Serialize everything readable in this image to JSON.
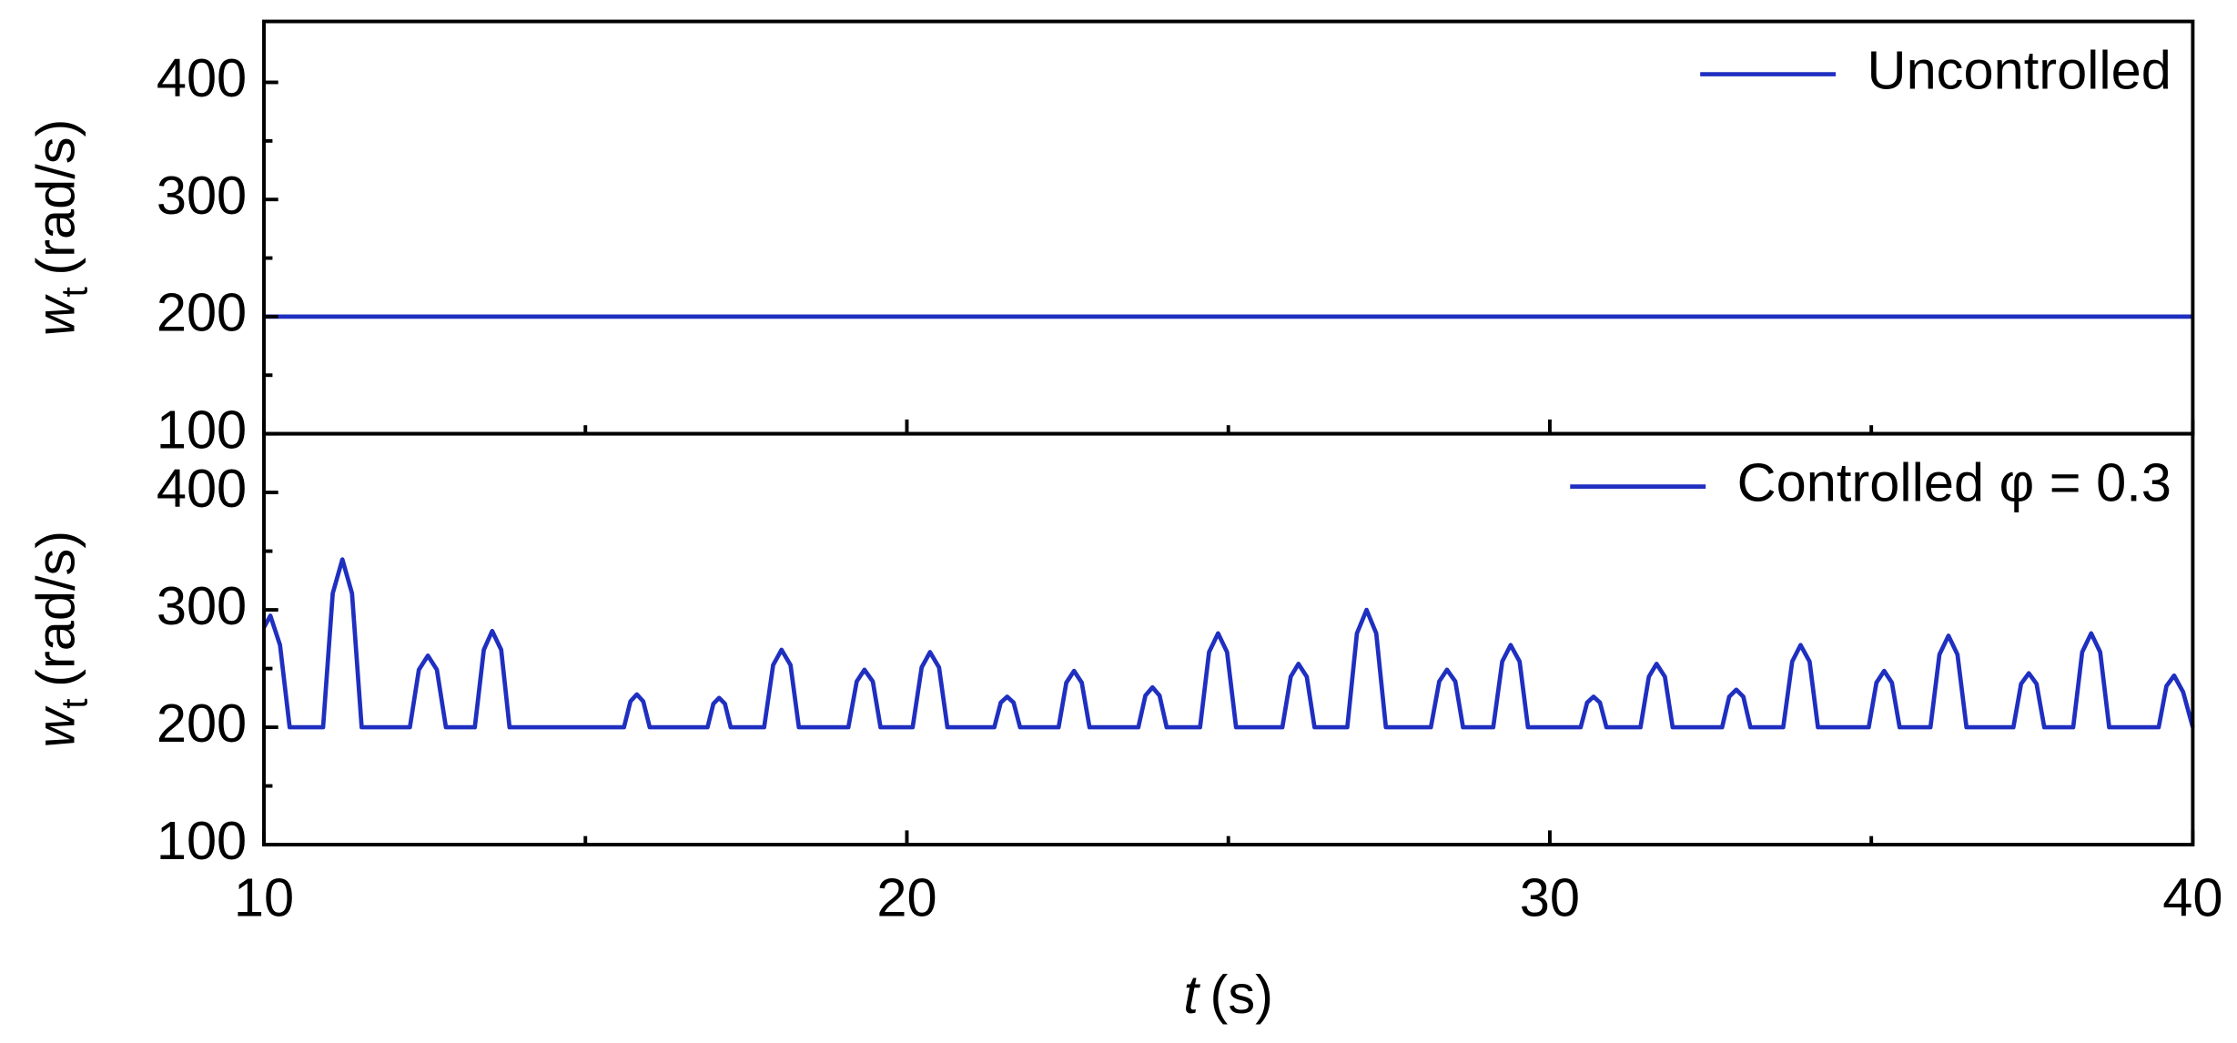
{
  "chart_data": [
    {
      "type": "line",
      "x": [
        10,
        40
      ],
      "series": [
        {
          "name": "Uncontrolled",
          "color": "#1f2fc0",
          "values": [
            200,
            200
          ]
        }
      ],
      "xlim": [
        10,
        40
      ],
      "xticks": [
        10,
        20,
        30,
        40
      ],
      "xminorticks": [
        15,
        25,
        35
      ],
      "show_xtick_labels": false,
      "ylim": [
        100,
        452
      ],
      "yticks": [
        100,
        200,
        300,
        400
      ],
      "yminorticks": [
        150,
        250,
        350
      ],
      "ylabel": {
        "symbol": "w",
        "subscript": "t",
        "unit": "(rad/s)"
      },
      "legend": "upper right"
    },
    {
      "type": "line",
      "x": [
        10,
        10.1,
        10.25,
        10.4,
        10.92,
        11.07,
        11.22,
        11.37,
        11.52,
        12.27,
        12.41,
        12.55,
        12.69,
        12.83,
        13.28,
        13.42,
        13.55,
        13.69,
        13.82,
        15.6,
        15.7,
        15.8,
        15.9,
        16.0,
        16.9,
        16.99,
        17.08,
        17.17,
        17.26,
        17.78,
        17.92,
        18.05,
        18.19,
        18.32,
        19.09,
        19.22,
        19.34,
        19.47,
        19.59,
        20.09,
        20.23,
        20.36,
        20.5,
        20.63,
        21.36,
        21.46,
        21.56,
        21.66,
        21.76,
        22.36,
        22.48,
        22.6,
        22.72,
        22.84,
        23.6,
        23.71,
        23.82,
        23.93,
        24.04,
        24.56,
        24.7,
        24.84,
        24.98,
        25.12,
        25.84,
        25.97,
        26.09,
        26.22,
        26.34,
        26.85,
        27.0,
        27.15,
        27.3,
        27.45,
        28.15,
        28.28,
        28.4,
        28.53,
        28.65,
        29.12,
        29.26,
        29.39,
        29.53,
        29.66,
        30.48,
        30.58,
        30.68,
        30.78,
        30.88,
        31.41,
        31.54,
        31.66,
        31.79,
        31.91,
        32.68,
        32.79,
        32.9,
        33.01,
        33.12,
        33.63,
        33.77,
        33.9,
        34.04,
        34.17,
        34.96,
        35.08,
        35.2,
        35.32,
        35.44,
        35.92,
        36.06,
        36.2,
        36.34,
        36.48,
        37.21,
        37.33,
        37.45,
        37.57,
        37.69,
        38.14,
        38.28,
        38.42,
        38.56,
        38.7,
        39.47,
        39.59,
        39.71,
        39.85,
        40
      ],
      "series": [
        {
          "name": "Controlled φ = 0.3",
          "color": "#1f2fc0",
          "values": [
            285,
            295,
            270,
            200,
            200,
            314,
            343,
            314,
            200,
            200,
            249,
            261,
            249,
            200,
            200,
            266,
            282,
            266,
            200,
            200,
            222,
            228,
            222,
            200,
            200,
            220,
            225,
            220,
            200,
            200,
            253,
            266,
            253,
            200,
            200,
            239,
            249,
            239,
            200,
            200,
            251,
            264,
            251,
            200,
            200,
            221,
            226,
            221,
            200,
            200,
            238,
            248,
            238,
            200,
            200,
            227,
            234,
            227,
            200,
            200,
            264,
            280,
            264,
            200,
            200,
            243,
            254,
            243,
            200,
            200,
            280,
            300,
            280,
            200,
            200,
            239,
            249,
            239,
            200,
            200,
            256,
            270,
            256,
            200,
            200,
            221,
            226,
            221,
            200,
            200,
            243,
            254,
            243,
            200,
            200,
            226,
            232,
            226,
            200,
            200,
            256,
            270,
            256,
            200,
            200,
            238,
            248,
            238,
            200,
            200,
            262,
            278,
            262,
            200,
            200,
            237,
            246,
            237,
            200,
            200,
            264,
            280,
            264,
            200,
            200,
            235,
            244,
            230,
            200
          ]
        }
      ],
      "xlim": [
        10,
        40
      ],
      "xticks": [
        10,
        20,
        30,
        40
      ],
      "xminorticks": [
        15,
        25,
        35
      ],
      "show_xtick_labels": true,
      "ylim": [
        100,
        450
      ],
      "yticks": [
        100,
        200,
        300,
        400
      ],
      "yminorticks": [
        150,
        250,
        350
      ],
      "xlabel": {
        "symbol": "t",
        "unit": "(s)"
      },
      "ylabel": {
        "symbol": "w",
        "subscript": "t",
        "unit": "(rad/s)"
      },
      "legend": "upper right"
    }
  ]
}
